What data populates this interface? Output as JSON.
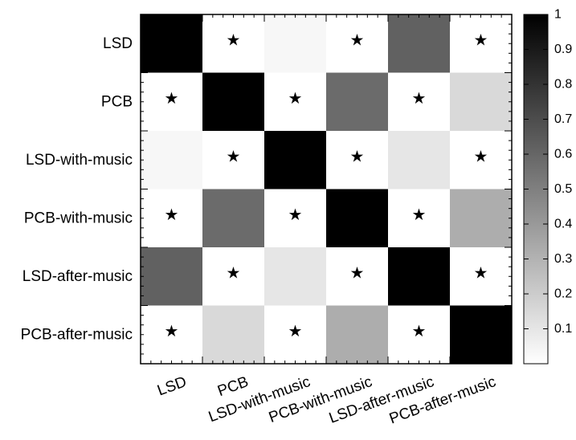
{
  "chart_data": {
    "type": "heatmap",
    "rows": [
      "LSD",
      "PCB",
      "LSD-with-music",
      "PCB-with-music",
      "LSD-after-music",
      "PCB-after-music"
    ],
    "columns": [
      "LSD",
      "PCB",
      "LSD-with-music",
      "PCB-with-music",
      "LSD-after-music",
      "PCB-after-music"
    ],
    "values": [
      [
        1.0,
        0.0,
        0.03,
        0.0,
        0.62,
        0.0
      ],
      [
        0.0,
        1.0,
        0.0,
        0.58,
        0.0,
        0.15
      ],
      [
        0.03,
        0.0,
        1.0,
        0.0,
        0.1,
        0.0
      ],
      [
        0.0,
        0.58,
        0.0,
        1.0,
        0.0,
        0.32
      ],
      [
        0.62,
        0.0,
        0.1,
        0.0,
        1.0,
        0.0
      ],
      [
        0.0,
        0.15,
        0.0,
        0.32,
        0.0,
        1.0
      ]
    ],
    "significance_marker": "★",
    "significant_cells": [
      [
        0,
        1
      ],
      [
        0,
        3
      ],
      [
        0,
        5
      ],
      [
        1,
        0
      ],
      [
        1,
        2
      ],
      [
        1,
        4
      ],
      [
        2,
        1
      ],
      [
        2,
        3
      ],
      [
        2,
        5
      ],
      [
        3,
        0
      ],
      [
        3,
        2
      ],
      [
        3,
        4
      ],
      [
        4,
        1
      ],
      [
        4,
        3
      ],
      [
        4,
        5
      ],
      [
        5,
        0
      ],
      [
        5,
        2
      ],
      [
        5,
        4
      ]
    ],
    "colorbar": {
      "min": 0,
      "max": 1,
      "ticks": [
        0.1,
        0.2,
        0.3,
        0.4,
        0.5,
        0.6,
        0.7,
        0.8,
        0.9,
        1
      ],
      "tick_labels": [
        "0.1",
        "0.2",
        "0.3",
        "0.4",
        "0.5",
        "0.6",
        "0.7",
        "0.8",
        "0.9",
        "1"
      ],
      "colormap": "white-to-black (gray)"
    },
    "title": "",
    "xlabel": "",
    "ylabel": "",
    "grid": false
  }
}
